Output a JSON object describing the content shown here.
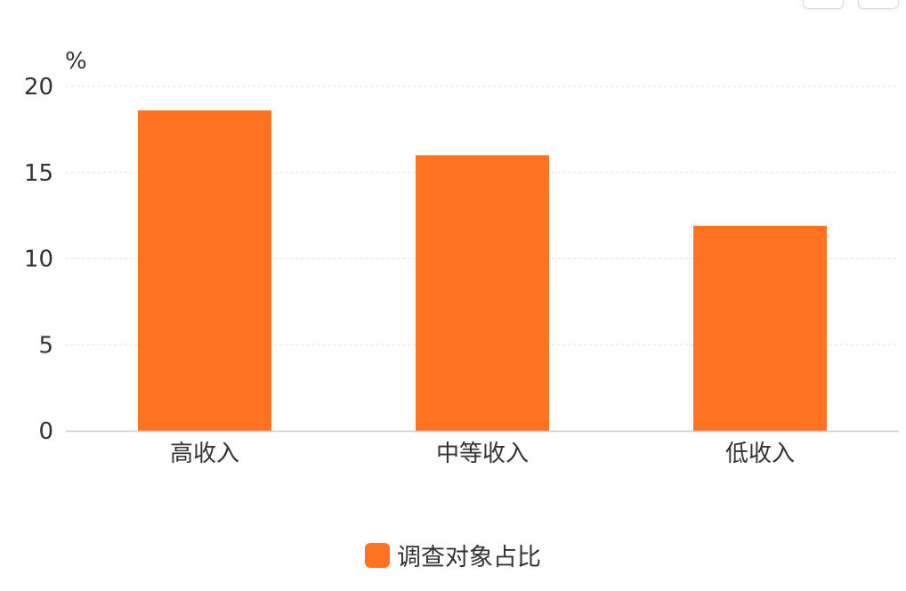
{
  "chart_data": {
    "type": "bar",
    "title": "",
    "xlabel": "",
    "ylabel": "",
    "y_unit": "%",
    "categories": [
      "高收入",
      "中等收入",
      "低收入"
    ],
    "series": [
      {
        "name": "调查对象占比",
        "values": [
          18.6,
          16.0,
          11.9
        ]
      }
    ],
    "ylim": [
      0,
      20
    ],
    "yticks": [
      0,
      5,
      10,
      15,
      20
    ],
    "grid": true,
    "legend_position": "bottom-center"
  },
  "colors": {
    "bar": "#FF7220",
    "grid": "#e3e3e3",
    "axis": "#cccccc",
    "text": "#333333"
  }
}
